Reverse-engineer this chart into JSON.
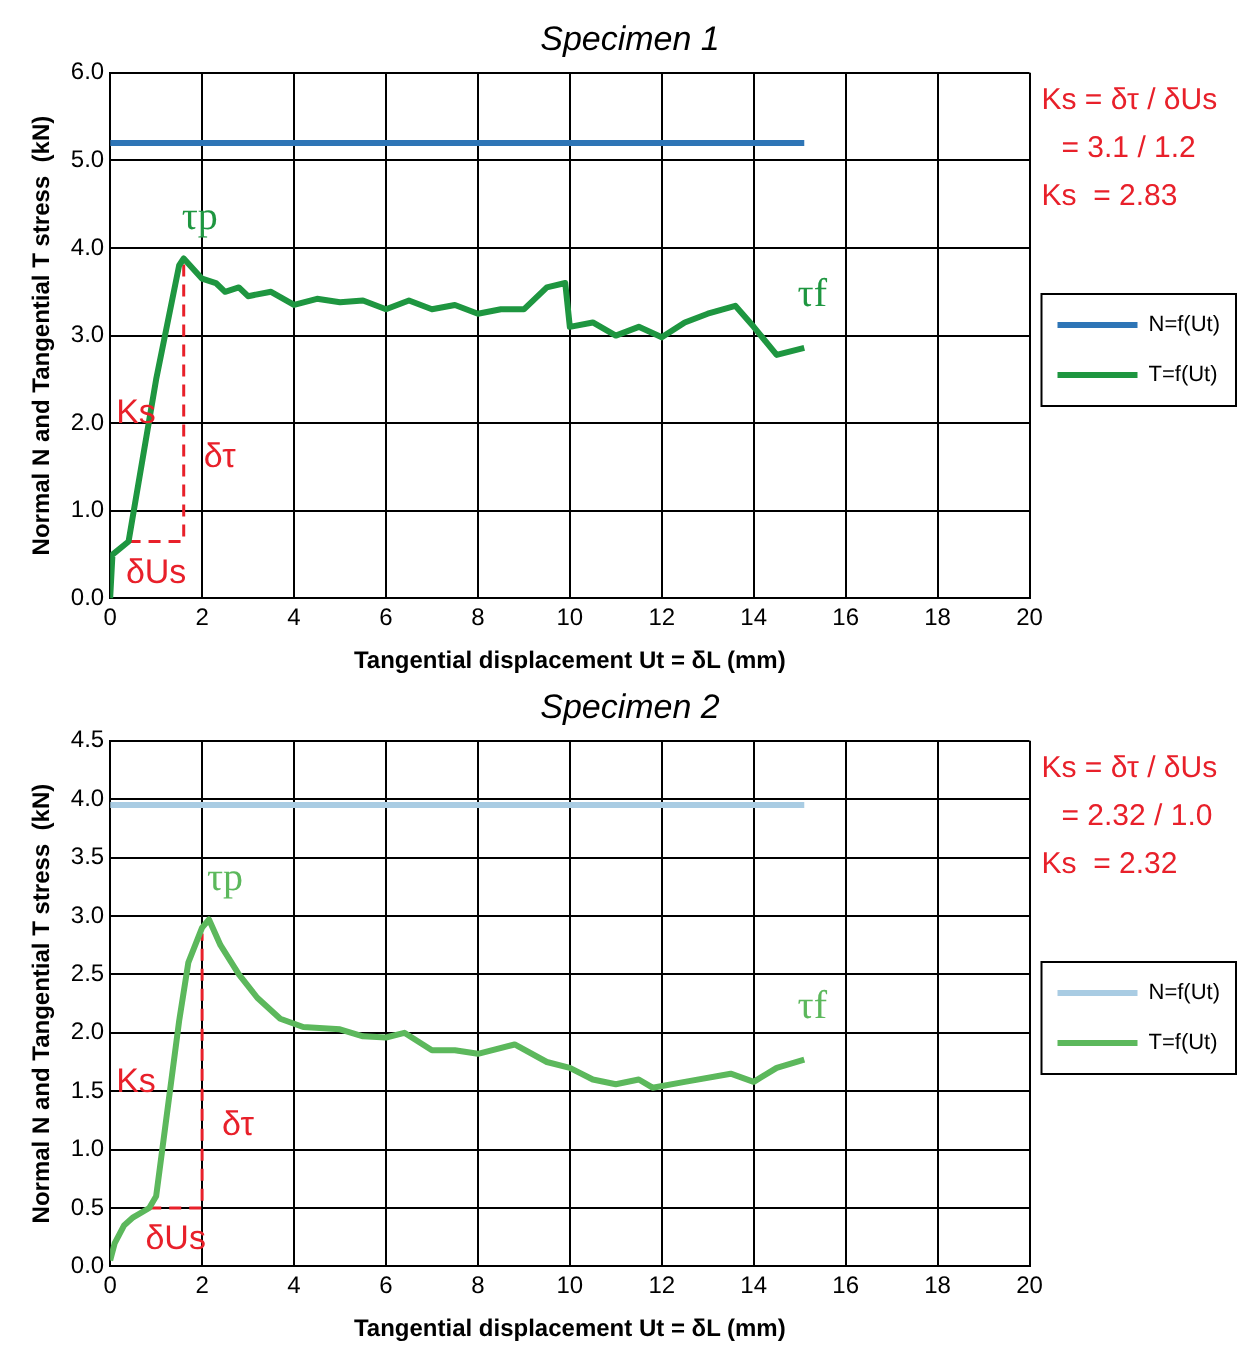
{
  "chart_data": [
    {
      "type": "line",
      "title": "Specimen 1",
      "xlabel": "Tangential displacement Ut = δL (mm)",
      "ylabel": "Normal N and Tangential T stress  (kN)",
      "xlim": [
        0,
        20
      ],
      "xticks": [
        0,
        2,
        4,
        6,
        8,
        10,
        12,
        14,
        16,
        18,
        20
      ],
      "ylim": [
        0,
        6
      ],
      "yticks": [
        {
          "value": 0,
          "label": "0.0"
        },
        {
          "value": 1,
          "label": "1.0"
        },
        {
          "value": 2,
          "label": "2.0"
        },
        {
          "value": 3,
          "label": "3.0"
        },
        {
          "value": 4,
          "label": "4.0"
        },
        {
          "value": 5,
          "label": "5.0"
        },
        {
          "value": 6,
          "label": "6.0"
        }
      ],
      "grid": true,
      "legend": "right",
      "series": [
        {
          "name": "N=f(Ut)",
          "color": "#2e75b6",
          "x": [
            0,
            15.1
          ],
          "values": [
            5.2,
            5.2
          ]
        },
        {
          "name": "T=f(Ut)",
          "color": "#1e9640",
          "x": [
            0,
            0.05,
            0.4,
            1.0,
            1.5,
            1.6,
            2,
            2.3,
            2.5,
            2.8,
            3,
            3.5,
            4,
            4.5,
            5,
            5.5,
            6,
            6.5,
            7,
            7.5,
            8,
            8.5,
            9,
            9.5,
            9.9,
            10,
            10.5,
            11,
            11.5,
            12,
            12.5,
            13,
            13.6,
            14,
            14.5,
            15.1
          ],
          "values": [
            0,
            0.5,
            0.65,
            2.5,
            3.8,
            3.88,
            3.65,
            3.6,
            3.5,
            3.55,
            3.45,
            3.5,
            3.35,
            3.42,
            3.38,
            3.4,
            3.3,
            3.4,
            3.3,
            3.35,
            3.25,
            3.3,
            3.3,
            3.55,
            3.6,
            3.1,
            3.15,
            3.0,
            3.1,
            2.98,
            3.15,
            3.25,
            3.34,
            3.1,
            2.78,
            2.86
          ]
        },
        {
          "color": "#e8202a",
          "line_style": "dashed",
          "x": [
            0.4,
            1.6,
            1.6
          ],
          "values": [
            0.65,
            0.65,
            3.85
          ]
        }
      ],
      "annotations": [
        "τp",
        "τf",
        "Ks",
        "δτ",
        "δUs",
        "Ks = δτ / δUs",
        "= 3.1 / 1.2",
        "Ks  = 2.83"
      ]
    },
    {
      "type": "line",
      "title": "Specimen 2",
      "xlabel": "Tangential displacement Ut = δL (mm)",
      "ylabel": "Normal N and Tangential T stress  (kN)",
      "xlim": [
        0,
        20
      ],
      "xticks": [
        0,
        2,
        4,
        6,
        8,
        10,
        12,
        14,
        16,
        18,
        20
      ],
      "ylim": [
        0,
        4.5
      ],
      "yticks": [
        {
          "value": 0,
          "label": "0.0"
        },
        {
          "value": 0.5,
          "label": "0.5"
        },
        {
          "value": 1,
          "label": "1.0"
        },
        {
          "value": 1.5,
          "label": "1.5"
        },
        {
          "value": 2,
          "label": "2.0"
        },
        {
          "value": 2.5,
          "label": "2.5"
        },
        {
          "value": 3,
          "label": "3.0"
        },
        {
          "value": 3.5,
          "label": "3.5"
        },
        {
          "value": 4,
          "label": "4.0"
        },
        {
          "value": 4.5,
          "label": "4.5"
        }
      ],
      "grid": true,
      "legend": "right",
      "series": [
        {
          "name": "N=f(Ut)",
          "color": "#a9cce3",
          "x": [
            0,
            15.1
          ],
          "values": [
            3.95,
            3.95
          ]
        },
        {
          "name": "T=f(Ut)",
          "color": "#5cb85c",
          "x": [
            0,
            0.1,
            0.3,
            0.5,
            0.85,
            1.0,
            1.2,
            1.5,
            1.7,
            2.0,
            2.15,
            2.4,
            2.8,
            3.2,
            3.7,
            4.2,
            5,
            5.5,
            6,
            6.4,
            7,
            7.5,
            8,
            8.8,
            9.5,
            10,
            10.5,
            11,
            11.5,
            11.8,
            12.5,
            13.5,
            14,
            14.5,
            15.1
          ],
          "values": [
            0.05,
            0.2,
            0.35,
            0.42,
            0.5,
            0.6,
            1.2,
            2.1,
            2.6,
            2.9,
            2.97,
            2.75,
            2.5,
            2.3,
            2.12,
            2.05,
            2.03,
            1.97,
            1.96,
            2.0,
            1.85,
            1.85,
            1.82,
            1.9,
            1.75,
            1.7,
            1.6,
            1.56,
            1.6,
            1.53,
            1.58,
            1.65,
            1.58,
            1.7,
            1.77
          ]
        },
        {
          "color": "#e8202a",
          "line_style": "dashed",
          "x": [
            0.85,
            2.0,
            2.0
          ],
          "values": [
            0.5,
            0.5,
            2.85
          ]
        }
      ],
      "annotations": [
        "τp",
        "τf",
        "Ks",
        "δτ",
        "δUs",
        "Ks = δτ / δUs",
        "= 2.32 / 1.0",
        "Ks  = 2.32"
      ]
    }
  ]
}
